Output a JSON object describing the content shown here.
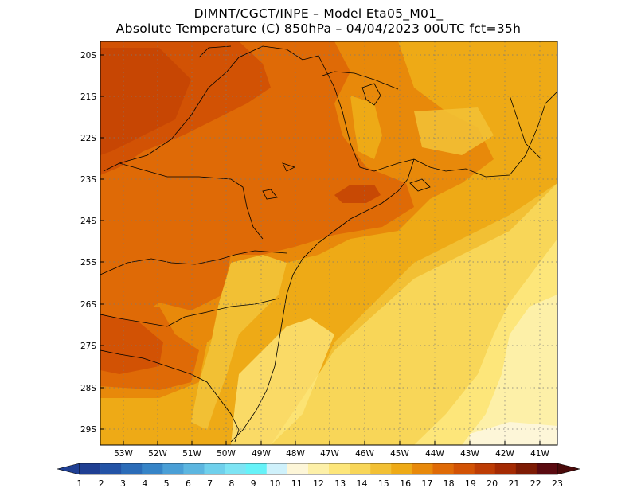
{
  "header": {
    "line1": "DIMNT/CGCT/INPE –  Model Eta05_M01_",
    "line2": "Absolute Temperature (C) 850hPa –  04/04/2023 00UTC fct=35h"
  },
  "map": {
    "lat_labels": [
      "20S",
      "21S",
      "22S",
      "23S",
      "24S",
      "25S",
      "26S",
      "27S",
      "28S",
      "29S"
    ],
    "lon_labels": [
      "53W",
      "52W",
      "51W",
      "50W",
      "49W",
      "48W",
      "47W",
      "46W",
      "45W",
      "44W",
      "43W",
      "42W",
      "41W"
    ]
  },
  "colorbar": {
    "labels": [
      "1",
      "2",
      "3",
      "4",
      "5",
      "6",
      "7",
      "8",
      "9",
      "10",
      "11",
      "12",
      "13",
      "14",
      "15",
      "16",
      "17",
      "18",
      "19",
      "20",
      "21",
      "22",
      "23"
    ],
    "colors": [
      "#1f3f93",
      "#2353a6",
      "#2b6cb8",
      "#3684c7",
      "#4a9fd6",
      "#5cb6e0",
      "#6fd0ec",
      "#7de4f4",
      "#66f2f8",
      "#cff1fb",
      "#fdf6d8",
      "#fdf0a8",
      "#fde67a",
      "#f8d658",
      "#f2c034",
      "#eeaa16",
      "#e8890a",
      "#df6a06",
      "#d25204",
      "#bd3c04",
      "#a42a03",
      "#7d1b04",
      "#5a0a10"
    ],
    "left_end_color": "#1f3f93",
    "right_end_color": "#4a0a0a"
  }
}
